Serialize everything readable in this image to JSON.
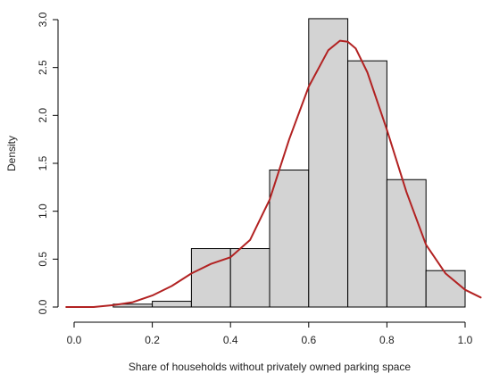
{
  "chart_data": {
    "type": "bar",
    "title": "",
    "xlabel": "Share of households without privately owned parking space",
    "ylabel": "Density",
    "xlim": [
      0.0,
      1.0
    ],
    "ylim": [
      0.0,
      3.0
    ],
    "x_ticks": [
      "0.0",
      "0.2",
      "0.4",
      "0.6",
      "0.8",
      "1.0"
    ],
    "y_ticks": [
      "0.0",
      "0.5",
      "1.0",
      "1.5",
      "2.0",
      "2.5",
      "3.0"
    ],
    "grid": false,
    "bar_color": "#d3d3d3",
    "bar_border_color": "#000000",
    "bins": [
      {
        "from": 0.1,
        "to": 0.2,
        "density": 0.03
      },
      {
        "from": 0.2,
        "to": 0.3,
        "density": 0.06
      },
      {
        "from": 0.3,
        "to": 0.4,
        "density": 0.61
      },
      {
        "from": 0.4,
        "to": 0.5,
        "density": 0.61
      },
      {
        "from": 0.5,
        "to": 0.6,
        "density": 1.43
      },
      {
        "from": 0.6,
        "to": 0.7,
        "density": 3.01
      },
      {
        "from": 0.7,
        "to": 0.8,
        "density": 2.57
      },
      {
        "from": 0.8,
        "to": 0.9,
        "density": 1.33
      },
      {
        "from": 0.9,
        "to": 1.0,
        "density": 0.38
      }
    ],
    "density_curve": {
      "color": "#b22222",
      "x": [
        -0.02,
        0.05,
        0.1,
        0.15,
        0.2,
        0.25,
        0.3,
        0.35,
        0.4,
        0.45,
        0.5,
        0.55,
        0.6,
        0.65,
        0.68,
        0.7,
        0.72,
        0.75,
        0.8,
        0.85,
        0.9,
        0.95,
        1.0,
        1.04
      ],
      "y": [
        0.0,
        0.0,
        0.02,
        0.05,
        0.12,
        0.22,
        0.35,
        0.45,
        0.52,
        0.7,
        1.12,
        1.75,
        2.3,
        2.68,
        2.78,
        2.77,
        2.7,
        2.45,
        1.85,
        1.2,
        0.65,
        0.35,
        0.18,
        0.1
      ]
    }
  }
}
